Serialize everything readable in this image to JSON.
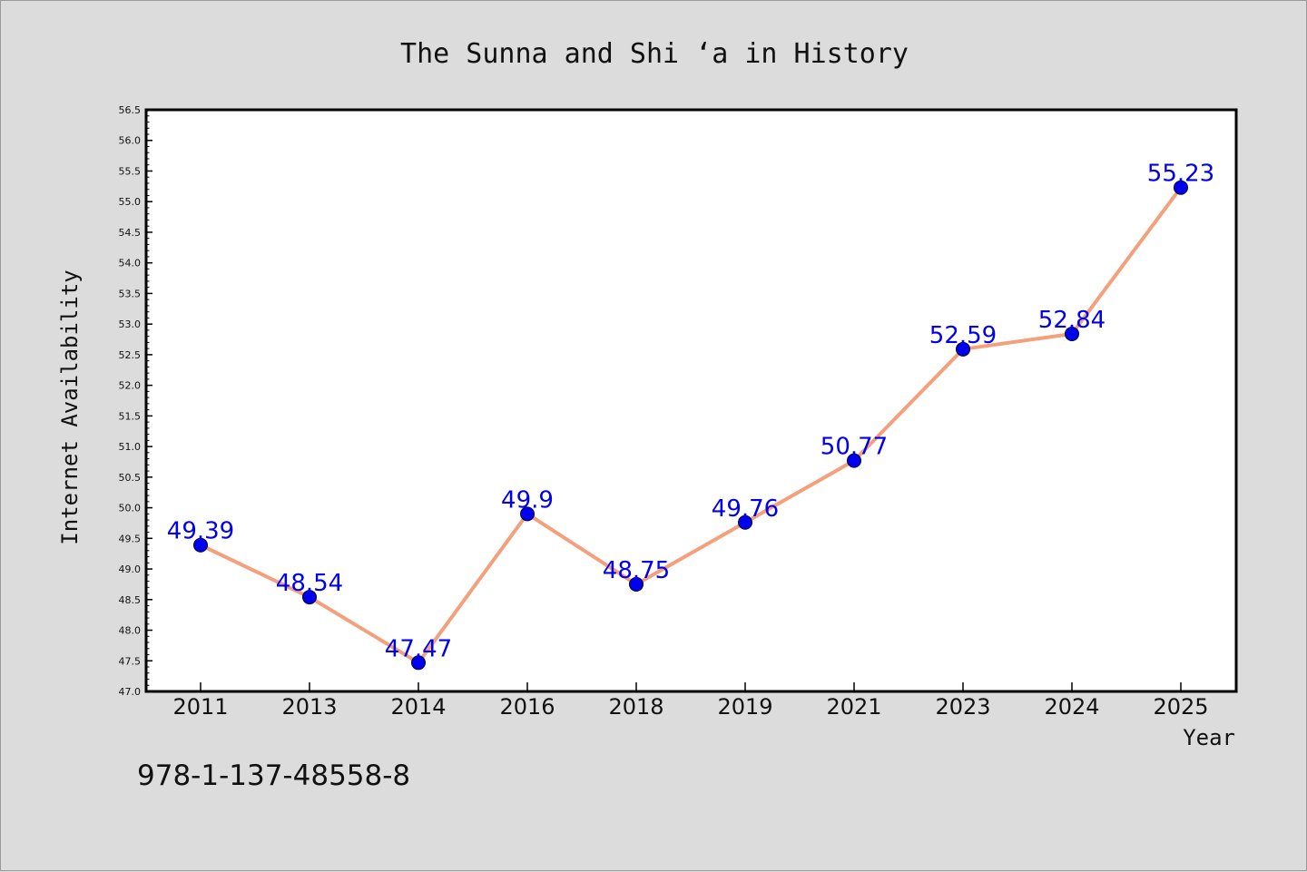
{
  "chart_data": {
    "type": "line",
    "title": "The Sunna and Shi ‘a in History",
    "xlabel": "Year",
    "ylabel": "Internet Availability",
    "categories": [
      "2011",
      "2013",
      "2014",
      "2016",
      "2018",
      "2019",
      "2021",
      "2023",
      "2024",
      "2025"
    ],
    "series": [
      {
        "values": [
          49.39,
          48.54,
          47.47,
          49.9,
          48.75,
          49.76,
          50.77,
          52.59,
          52.84,
          55.23
        ],
        "data_labels": [
          "49.39",
          "48.54",
          "47.47",
          "49.9",
          "48.75",
          "49.76",
          "50.77",
          "52.59",
          "52.84",
          "55.23"
        ]
      }
    ],
    "ylim": [
      47.0,
      56.5
    ],
    "y_ticks": [
      "47.0",
      "47.5",
      "48.0",
      "48.5",
      "49.0",
      "49.5",
      "50.0",
      "50.5",
      "51.0",
      "51.5",
      "52.0",
      "52.5",
      "53.0",
      "53.5",
      "54.0",
      "54.5",
      "55.0",
      "55.5",
      "56.0",
      "56.5"
    ],
    "grid": false,
    "legend": "none",
    "annotation": "978-1-137-48558-8"
  },
  "colors": {
    "background": "#dcdcdc",
    "plot_background": "#ffffff",
    "line": "#f4a07c",
    "marker": "#0000ee",
    "data_label": "#0000ee"
  }
}
